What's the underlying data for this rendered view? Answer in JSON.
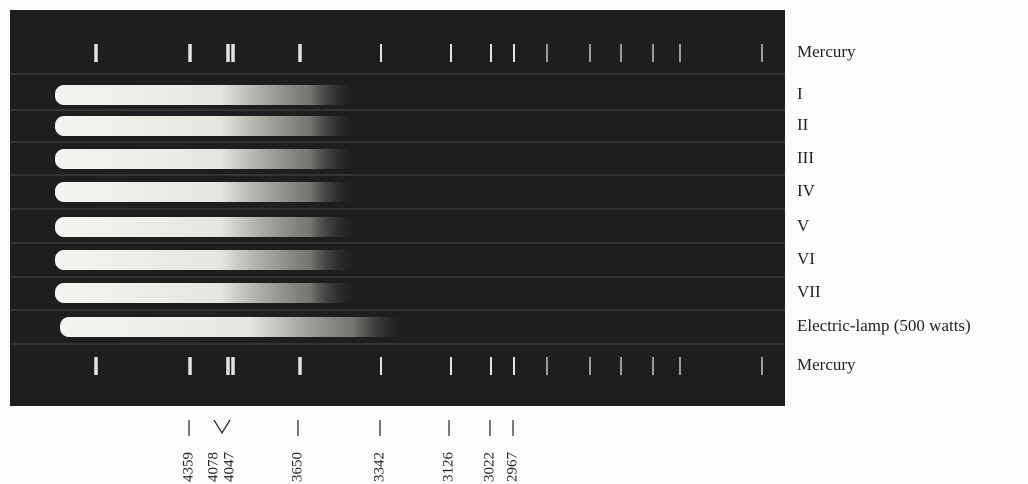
{
  "strip_labels": [
    "Mercury",
    "I",
    "II",
    "III",
    "IV",
    "V",
    "VI",
    "VII",
    "Electric-lamp (500 watts)",
    "Mercury"
  ],
  "wavelength_labels": [
    4359,
    4078,
    4047,
    3650,
    3342,
    3126,
    3022,
    2967
  ]
}
